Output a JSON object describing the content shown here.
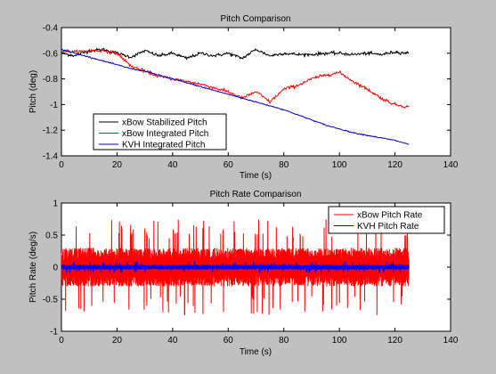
{
  "chart_data": [
    {
      "type": "line",
      "title": "Pitch Comparison",
      "xlabel": "Time (s)",
      "ylabel": "Pitch (deg)",
      "xlim": [
        0,
        140
      ],
      "ylim": [
        -1.4,
        -0.4
      ],
      "xticks": [
        0,
        20,
        40,
        60,
        80,
        100,
        120,
        140
      ],
      "yticks": [
        -1.4,
        -1.2,
        -1,
        -0.8,
        -0.6,
        -0.4
      ],
      "xtick_labels": [
        "0",
        "20",
        "40",
        "60",
        "80",
        "100",
        "120",
        "140"
      ],
      "ytick_labels": [
        "-1.4",
        "-1.2",
        "-1",
        "-0.8",
        "-0.6",
        "-0.4"
      ],
      "grid": false,
      "legend_position": "lower-left",
      "series": [
        {
          "name": "xBow Stabilized Pitch",
          "color": "#000000",
          "x": [
            0,
            5,
            10,
            15,
            20,
            25,
            30,
            35,
            40,
            45,
            50,
            55,
            60,
            65,
            70,
            75,
            80,
            85,
            90,
            95,
            100,
            105,
            110,
            115,
            120,
            125
          ],
          "y": [
            -0.6,
            -0.62,
            -0.58,
            -0.57,
            -0.6,
            -0.63,
            -0.58,
            -0.62,
            -0.6,
            -0.64,
            -0.6,
            -0.62,
            -0.6,
            -0.64,
            -0.57,
            -0.62,
            -0.6,
            -0.61,
            -0.61,
            -0.6,
            -0.6,
            -0.61,
            -0.6,
            -0.61,
            -0.59,
            -0.6
          ]
        },
        {
          "name": "xBow Integrated Pitch",
          "color": "#ff0000",
          "x": [
            0,
            5,
            10,
            15,
            20,
            25,
            30,
            35,
            40,
            45,
            50,
            55,
            60,
            65,
            70,
            75,
            80,
            85,
            90,
            95,
            100,
            105,
            110,
            115,
            120,
            125
          ],
          "y": [
            -0.58,
            -0.59,
            -0.58,
            -0.58,
            -0.6,
            -0.7,
            -0.74,
            -0.78,
            -0.8,
            -0.82,
            -0.84,
            -0.87,
            -0.9,
            -0.95,
            -0.9,
            -0.98,
            -0.88,
            -0.85,
            -0.8,
            -0.77,
            -0.75,
            -0.82,
            -0.88,
            -0.95,
            -1.0,
            -1.02
          ]
        },
        {
          "name": "KVH Integrated Pitch",
          "color": "#0000cc",
          "x": [
            0,
            5,
            10,
            15,
            20,
            25,
            30,
            35,
            40,
            45,
            50,
            55,
            60,
            65,
            70,
            75,
            80,
            85,
            90,
            95,
            100,
            105,
            110,
            115,
            120,
            125
          ],
          "y": [
            -0.57,
            -0.6,
            -0.63,
            -0.66,
            -0.69,
            -0.72,
            -0.74,
            -0.77,
            -0.8,
            -0.83,
            -0.86,
            -0.89,
            -0.92,
            -0.95,
            -0.98,
            -1.01,
            -1.04,
            -1.08,
            -1.12,
            -1.16,
            -1.19,
            -1.22,
            -1.24,
            -1.26,
            -1.28,
            -1.31
          ]
        }
      ]
    },
    {
      "type": "line",
      "title": "Pitch Rate Comparison",
      "xlabel": "Time (s)",
      "ylabel": "Pitch Rate (deg/s)",
      "xlim": [
        0,
        140
      ],
      "ylim": [
        -1,
        1
      ],
      "xticks": [
        0,
        20,
        40,
        60,
        80,
        100,
        120,
        140
      ],
      "yticks": [
        -1,
        -0.5,
        0,
        0.5,
        1
      ],
      "xtick_labels": [
        "0",
        "20",
        "40",
        "60",
        "80",
        "100",
        "120",
        "140"
      ],
      "ytick_labels": [
        "-1",
        "-0.5",
        "0",
        "0.5",
        "1"
      ],
      "grid": false,
      "legend_position": "top-right",
      "series": [
        {
          "name": "xBow Pitch Rate",
          "color": "#ff0000",
          "x_range": [
            0,
            125
          ],
          "typical_amplitude": 0.3,
          "peak_amplitude": 0.75
        },
        {
          "name": "KVH Pitch Rate",
          "color": "#0000ff",
          "x_range": [
            0,
            125
          ],
          "typical_amplitude": 0.04,
          "peak_amplitude": 0.09
        }
      ]
    }
  ]
}
